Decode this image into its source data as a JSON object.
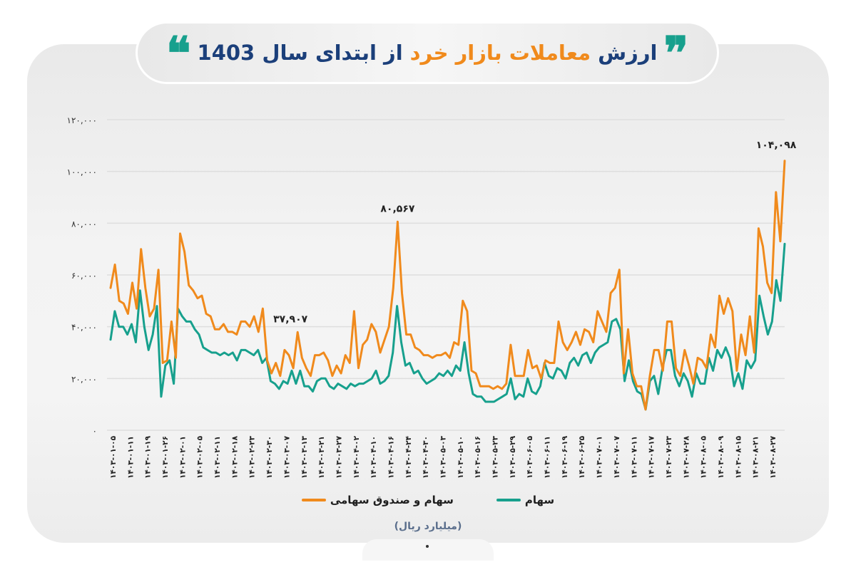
{
  "header": {
    "title_parts": [
      {
        "text": "ارزش",
        "accent": false
      },
      {
        "text": "معاملات بازار خرد",
        "accent": true
      },
      {
        "text": "از ابتدای سال 1403",
        "accent": false
      }
    ],
    "quote_open": "❞",
    "quote_close": "❝"
  },
  "colors": {
    "orange": "#f08a1c",
    "teal": "#17a08d",
    "title_blue": "#1b3f7a",
    "grid": "#dedede"
  },
  "legend": {
    "items": [
      {
        "label": "سهام",
        "color": "#17a08d"
      },
      {
        "label": "سهام و صندوق سهامی",
        "color": "#f08a1c"
      }
    ],
    "unit": "(میلیارد ریال)"
  },
  "chart_data": {
    "type": "line",
    "title": "ارزش معاملات بازار خرد از ابتدای سال 1403",
    "xlabel": "",
    "ylabel": "میلیارد ریال",
    "ylim": [
      0,
      120000
    ],
    "grid": true,
    "legend_position": "bottom",
    "y_ticks": [
      "۰",
      "۲۰,۰۰۰",
      "۴۰,۰۰۰",
      "۶۰,۰۰۰",
      "۸۰,۰۰۰",
      "۱۰۰,۰۰۰",
      "۱۲۰,۰۰۰"
    ],
    "y_tick_values": [
      0,
      20000,
      40000,
      60000,
      80000,
      100000,
      120000
    ],
    "x_tick_labels": [
      "۱۴۰۳-۰۱-۰۵",
      "۱۴۰۳-۰۱-۱۱",
      "۱۴۰۳-۰۱-۱۹",
      "۱۴۰۳-۰۱-۲۶",
      "۱۴۰۳-۰۲-۰۱",
      "۱۴۰۳-۰۲-۰۵",
      "۱۴۰۳-۰۲-۱۱",
      "۱۴۰۳-۰۲-۱۸",
      "۱۴۰۳-۰۲-۲۳",
      "۱۴۰۳-۰۲-۳۰",
      "۱۴۰۳-۰۳-۰۷",
      "۱۴۰۳-۰۳-۱۳",
      "۱۴۰۳-۰۳-۲۱",
      "۱۴۰۳-۰۳-۲۷",
      "۱۴۰۳-۰۴-۰۲",
      "۱۴۰۳-۰۴-۱۰",
      "۱۴۰۳-۰۴-۱۶",
      "۱۴۰۳-۰۴-۲۴",
      "۱۴۰۳-۰۴-۳۰",
      "۱۴۰۳-۰۵-۰۳",
      "۱۴۰۳-۰۵-۱۰",
      "۱۴۰۳-۰۵-۱۶",
      "۱۴۰۳-۰۵-۲۳",
      "۱۴۰۳-۰۵-۲۹",
      "۱۴۰۳-۰۶-۰۵",
      "۱۴۰۳-۰۶-۱۱",
      "۱۴۰۳-۰۶-۱۹",
      "۱۴۰۳-۰۶-۲۵",
      "۱۴۰۳-۰۷-۰۱",
      "۱۴۰۳-۰۷-۰۷",
      "۱۴۰۳-۰۷-۱۱",
      "۱۴۰۳-۰۷-۱۷",
      "۱۴۰۳-۰۷-۲۳",
      "۱۴۰۳-۰۷-۲۸",
      "۱۴۰۳-۰۸-۰۵",
      "۱۴۰۳-۰۸-۰۹",
      "۱۴۰۳-۰۸-۱۵",
      "۱۴۰۳-۰۸-۲۱",
      "۱۴۰۳-۰۸-۲۷"
    ],
    "annotations": [
      {
        "text": "۳۷,۹۰۷",
        "value": 37907,
        "series": "سهام و صندوق سهامی"
      },
      {
        "text": "۸۰,۵۶۷",
        "value": 80567,
        "series": "سهام و صندوق سهامی"
      },
      {
        "text": "۱۰۴,۰۹۸",
        "value": 104098,
        "series": "سهام و صندوق سهامی"
      }
    ],
    "series": [
      {
        "name": "سهام و صندوق سهامی",
        "color": "#f08a1c",
        "values": [
          55000,
          64000,
          50000,
          49000,
          45000,
          57000,
          47000,
          70000,
          55000,
          44000,
          47000,
          62000,
          26000,
          27000,
          42000,
          28000,
          76000,
          69000,
          56000,
          54000,
          51000,
          52000,
          45000,
          44000,
          39000,
          39000,
          41000,
          38000,
          38000,
          37000,
          42000,
          42000,
          40000,
          44000,
          38000,
          47000,
          27000,
          22000,
          26000,
          21000,
          31000,
          29000,
          24000,
          37907,
          28000,
          24000,
          21000,
          29000,
          29000,
          30000,
          27000,
          21000,
          25000,
          22000,
          29000,
          26000,
          46000,
          24000,
          33000,
          35000,
          41000,
          38000,
          30000,
          35000,
          40000,
          55000,
          80567,
          53000,
          37000,
          37000,
          32000,
          31000,
          29000,
          29000,
          28000,
          29000,
          29000,
          30000,
          28000,
          34000,
          33000,
          50000,
          46000,
          23000,
          22000,
          17000,
          17000,
          17000,
          16000,
          17000,
          16000,
          18000,
          33000,
          21000,
          21000,
          21000,
          31000,
          24000,
          25000,
          20000,
          27000,
          26000,
          26000,
          42000,
          34000,
          31000,
          34000,
          38000,
          33000,
          39000,
          38000,
          34000,
          46000,
          42000,
          38000,
          53000,
          55000,
          62000,
          22000,
          39000,
          22000,
          17000,
          17000,
          8000,
          21000,
          31000,
          31000,
          23000,
          42000,
          42000,
          24000,
          21000,
          31000,
          25000,
          18000,
          28000,
          27000,
          24000,
          37000,
          32000,
          52000,
          45000,
          51000,
          46000,
          23000,
          37000,
          29000,
          44000,
          30000,
          78000,
          71000,
          57000,
          53000,
          92000,
          73000,
          104098
        ]
      },
      {
        "name": "سهام",
        "color": "#17a08d",
        "values": [
          35000,
          46000,
          40000,
          40000,
          37000,
          41000,
          34000,
          54000,
          40000,
          31000,
          37000,
          48000,
          13000,
          25000,
          27000,
          18000,
          47000,
          44000,
          42000,
          42000,
          39000,
          37000,
          32000,
          31000,
          30000,
          30000,
          29000,
          30000,
          29000,
          30000,
          27000,
          31000,
          31000,
          30000,
          29000,
          31000,
          26000,
          28000,
          19000,
          18000,
          16000,
          19000,
          18000,
          23000,
          18000,
          23000,
          17000,
          17000,
          15000,
          19000,
          20000,
          20000,
          17000,
          16000,
          18000,
          17000,
          16000,
          18000,
          17000,
          18000,
          18000,
          19000,
          20000,
          23000,
          18000,
          19000,
          21000,
          30000,
          48000,
          34000,
          25000,
          26000,
          22000,
          23000,
          20000,
          18000,
          19000,
          20000,
          22000,
          21000,
          23000,
          21000,
          25000,
          23000,
          34000,
          22000,
          14000,
          13000,
          13000,
          11000,
          11000,
          11000,
          12000,
          13000,
          14000,
          20000,
          12000,
          14000,
          13000,
          20000,
          15000,
          14000,
          17000,
          26000,
          21000,
          20000,
          24000,
          23000,
          20000,
          26000,
          28000,
          25000,
          29000,
          30000,
          26000,
          30000,
          32000,
          33000,
          34000,
          42000,
          43000,
          39000,
          19000,
          27000,
          19000,
          15000,
          14000,
          8000,
          19000,
          21000,
          14000,
          24000,
          31000,
          31000,
          21000,
          17000,
          22000,
          19000,
          13000,
          22000,
          18000,
          18000,
          28000,
          23000,
          31000,
          28000,
          32000,
          28000,
          17000,
          22000,
          16000,
          27000,
          24000,
          27000,
          52000,
          44000,
          37000,
          42000,
          58000,
          50000,
          72000
        ]
      }
    ]
  }
}
